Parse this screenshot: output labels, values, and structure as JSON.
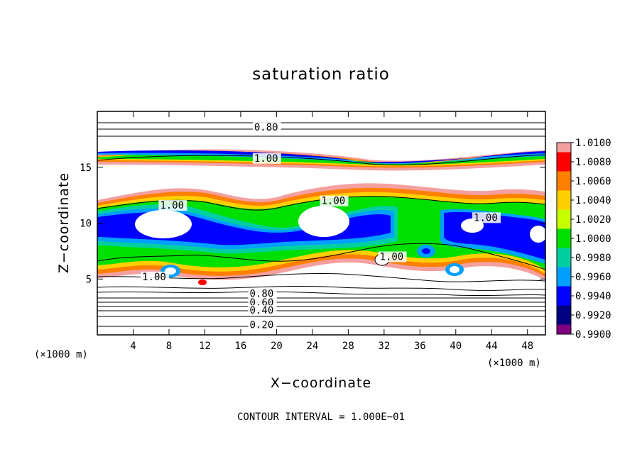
{
  "chart_data": {
    "type": "heatmap",
    "title": "saturation ratio",
    "xlabel": "X−coordinate",
    "ylabel": "Z−coordinate",
    "x_unit": "(×1000 m)",
    "z_unit": "(×1000 m)",
    "xlim": [
      0,
      50
    ],
    "ylim": [
      0,
      20
    ],
    "x_ticks": [
      4,
      8,
      12,
      16,
      20,
      24,
      28,
      32,
      36,
      40,
      44,
      48
    ],
    "y_ticks": [
      5,
      10,
      15
    ],
    "colorbar": {
      "levels": [
        "1.0100",
        "1.0080",
        "1.0060",
        "1.0040",
        "1.0020",
        "1.0000",
        "0.9980",
        "0.9960",
        "0.9940",
        "0.9920",
        "0.9900"
      ],
      "colors": [
        "#f4a0a0",
        "#ff0000",
        "#ff7f00",
        "#ffd000",
        "#c8ff00",
        "#00e000",
        "#00d0a0",
        "#00a0ff",
        "#0000ff",
        "#000080",
        "#800080"
      ]
    },
    "contour_labels": [
      {
        "text": "0.80",
        "x": 17.5,
        "z": 18.3
      },
      {
        "text": "1.00",
        "x": 17.5,
        "z": 15.5
      },
      {
        "text": "1.00",
        "x": 7.0,
        "z": 11.3
      },
      {
        "text": "1.00",
        "x": 25.0,
        "z": 11.7
      },
      {
        "text": "1.00",
        "x": 42.0,
        "z": 10.2
      },
      {
        "text": "1.00",
        "x": 5.0,
        "z": 4.9
      },
      {
        "text": "1.00",
        "x": 31.5,
        "z": 6.7
      },
      {
        "text": "0.80",
        "x": 17.0,
        "z": 3.4
      },
      {
        "text": "0.60",
        "x": 17.0,
        "z": 2.6
      },
      {
        "text": "0.40",
        "x": 17.0,
        "z": 1.9
      },
      {
        "text": "0.20",
        "x": 17.0,
        "z": 0.6
      }
    ],
    "contour_interval_note": "CONTOUR INTERVAL = 1.000E−01"
  }
}
